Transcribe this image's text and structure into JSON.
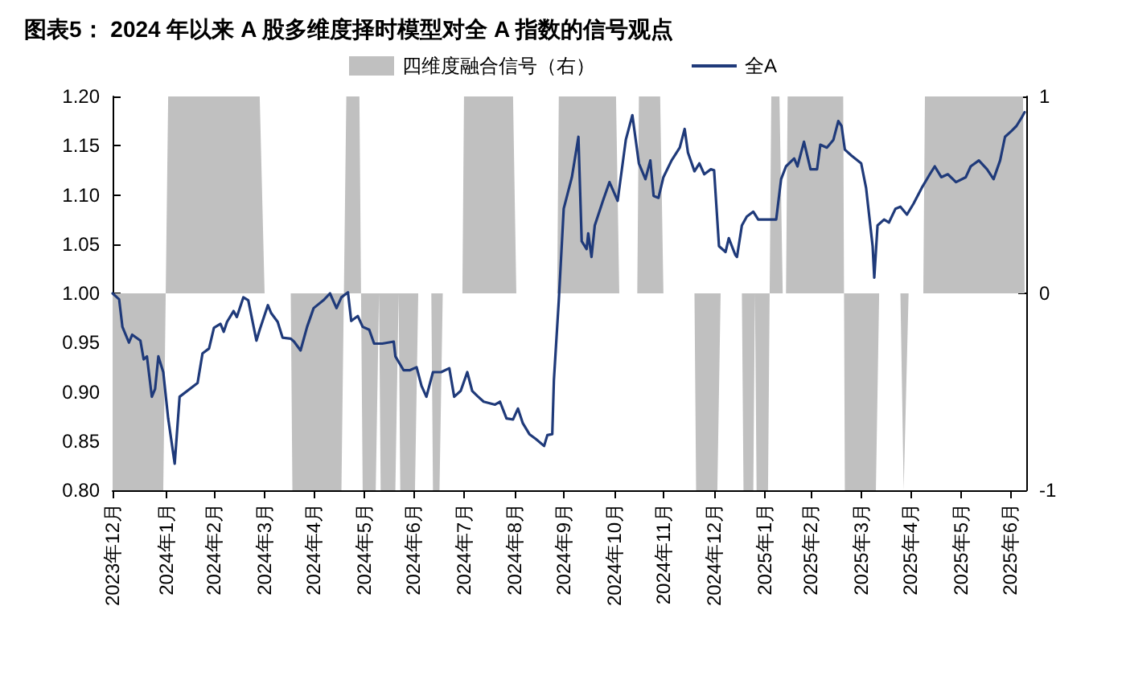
{
  "chart_data": {
    "type": "line",
    "title": "图表5： 2024 年以来 A 股多维度择时模型对全 A 指数的信号观点",
    "legend": "top",
    "grid": false,
    "marker": "none",
    "line_style": "solid",
    "xlim": [
      "2023-12-29",
      "2025-07-10"
    ],
    "xticks": [
      {
        "value": "2023-12-29",
        "label": "2023年12月"
      },
      {
        "value": "2024-01-31",
        "label": "2024年1月"
      },
      {
        "value": "2024-02-29",
        "label": "2024年2月"
      },
      {
        "value": "2024-03-31",
        "label": "2024年3月"
      },
      {
        "value": "2024-04-30",
        "label": "2024年4月"
      },
      {
        "value": "2024-05-31",
        "label": "2024年5月"
      },
      {
        "value": "2024-06-30",
        "label": "2024年6月"
      },
      {
        "value": "2024-07-31",
        "label": "2024年7月"
      },
      {
        "value": "2024-08-31",
        "label": "2024年8月"
      },
      {
        "value": "2024-09-30",
        "label": "2024年9月"
      },
      {
        "value": "2024-10-31",
        "label": "2024年10月"
      },
      {
        "value": "2024-11-30",
        "label": "2024年11月"
      },
      {
        "value": "2024-12-31",
        "label": "2024年12月"
      },
      {
        "value": "2025-01-31",
        "label": "2025年1月"
      },
      {
        "value": "2025-02-28",
        "label": "2025年2月"
      },
      {
        "value": "2025-03-31",
        "label": "2025年3月"
      },
      {
        "value": "2025-04-30",
        "label": "2025年4月"
      },
      {
        "value": "2025-05-31",
        "label": "2025年5月"
      },
      {
        "value": "2025-06-30",
        "label": "2025年6月"
      }
    ],
    "ylim": [
      0.8,
      1.2
    ],
    "yticks": [
      {
        "value": 0.8,
        "label": "0.80"
      },
      {
        "value": 0.85,
        "label": "0.85"
      },
      {
        "value": 0.9,
        "label": "0.90"
      },
      {
        "value": 0.95,
        "label": "0.95"
      },
      {
        "value": 1.0,
        "label": "1.00"
      },
      {
        "value": 1.05,
        "label": "1.05"
      },
      {
        "value": 1.1,
        "label": "1.10"
      },
      {
        "value": 1.15,
        "label": "1.15"
      },
      {
        "value": 1.2,
        "label": "1.20"
      }
    ],
    "y2lim": [
      -1,
      1
    ],
    "y2ticks": [
      -1,
      0,
      1
    ],
    "series": [
      {
        "name": "四维度融合信号（右）",
        "type": "area",
        "axis": "y2",
        "color": "#c0c0c0",
        "x": [
          "2023-12-29",
          "2024-01-29",
          "2024-02-01",
          "2024-03-28",
          "2024-03-31",
          "2024-04-16",
          "2024-04-17",
          "2024-05-17",
          "2024-05-20",
          "2024-05-28",
          "2024-05-30",
          "2024-06-07",
          "2024-06-09",
          "2024-06-10",
          "2024-06-19",
          "2024-06-21",
          "2024-06-22",
          "2024-07-01",
          "2024-07-03",
          "2024-07-11",
          "2024-07-12",
          "2024-07-16",
          "2024-07-18",
          "2024-07-30",
          "2024-07-31",
          "2024-08-30",
          "2024-09-01",
          "2024-09-26",
          "2024-09-27",
          "2024-11-01",
          "2024-11-03",
          "2024-11-14",
          "2024-11-15",
          "2024-11-28",
          "2024-11-30",
          "2024-12-19",
          "2024-12-20",
          "2025-01-02",
          "2025-01-04",
          "2025-01-17",
          "2025-01-18",
          "2025-01-24",
          "2025-01-25",
          "2025-01-26",
          "2025-02-02",
          "2025-02-04",
          "2025-02-09",
          "2025-02-11",
          "2025-02-13",
          "2025-02-14",
          "2025-03-20",
          "2025-03-21",
          "2025-04-09",
          "2025-04-11",
          "2025-04-24",
          "2025-04-26",
          "2025-04-29",
          "2025-05-08",
          "2025-05-09",
          "2025-07-08",
          "2025-07-09"
        ],
        "values": [
          -1,
          -1,
          1,
          1,
          0,
          0,
          -1,
          -1,
          1,
          1,
          -1,
          -1,
          0,
          -1,
          -1,
          0,
          -1,
          -1,
          0,
          0,
          -1,
          -1,
          0,
          0,
          1,
          1,
          0,
          0,
          1,
          1,
          0,
          0,
          1,
          1,
          0,
          0,
          -1,
          -1,
          0,
          0,
          -1,
          -1,
          0,
          -1,
          -1,
          1,
          1,
          0,
          0,
          1,
          1,
          -1,
          -1,
          0,
          0,
          -1,
          0,
          0,
          1,
          1,
          0
        ]
      },
      {
        "name": "全A",
        "color": "#1f3a7a",
        "x": [
          "2023-12-29",
          "2024-01-02",
          "2024-01-04",
          "2024-01-08",
          "2024-01-10",
          "2024-01-15",
          "2024-01-17",
          "2024-01-19",
          "2024-01-22",
          "2024-01-24",
          "2024-01-26",
          "2024-01-29",
          "2024-02-01",
          "2024-02-05",
          "2024-02-08",
          "2024-02-19",
          "2024-02-22",
          "2024-02-26",
          "2024-02-29",
          "2024-03-04",
          "2024-03-06",
          "2024-03-08",
          "2024-03-12",
          "2024-03-14",
          "2024-03-18",
          "2024-03-21",
          "2024-03-26",
          "2024-03-28",
          "2024-04-02",
          "2024-04-04",
          "2024-04-08",
          "2024-04-11",
          "2024-04-16",
          "2024-04-18",
          "2024-04-22",
          "2024-04-26",
          "2024-04-30",
          "2024-05-06",
          "2024-05-10",
          "2024-05-14",
          "2024-05-17",
          "2024-05-21",
          "2024-05-23",
          "2024-05-27",
          "2024-05-30",
          "2024-06-03",
          "2024-06-06",
          "2024-06-11",
          "2024-06-18",
          "2024-06-19",
          "2024-06-24",
          "2024-06-28",
          "2024-07-02",
          "2024-07-05",
          "2024-07-08",
          "2024-07-12",
          "2024-07-17",
          "2024-07-22",
          "2024-07-25",
          "2024-07-29",
          "2024-08-02",
          "2024-08-05",
          "2024-08-08",
          "2024-08-12",
          "2024-08-19",
          "2024-08-22",
          "2024-08-26",
          "2024-08-30",
          "2024-09-02",
          "2024-09-05",
          "2024-09-09",
          "2024-09-13",
          "2024-09-18",
          "2024-09-20",
          "2024-09-23",
          "2024-09-24",
          "2024-09-27",
          "2024-09-30",
          "2024-10-05",
          "2024-10-09",
          "2024-10-11",
          "2024-10-14",
          "2024-10-15",
          "2024-10-17",
          "2024-10-19",
          "2024-10-24",
          "2024-10-28",
          "2024-11-02",
          "2024-11-07",
          "2024-11-11",
          "2024-11-15",
          "2024-11-19",
          "2024-11-22",
          "2024-11-24",
          "2024-11-27",
          "2024-11-30",
          "2024-12-05",
          "2024-12-10",
          "2024-12-13",
          "2024-12-15",
          "2024-12-19",
          "2024-12-22",
          "2024-12-25",
          "2024-12-29",
          "2024-12-31",
          "2025-01-03",
          "2025-01-07",
          "2025-01-09",
          "2025-01-13",
          "2025-01-14",
          "2025-01-17",
          "2025-01-20",
          "2025-01-24",
          "2025-01-27",
          "2025-02-07",
          "2025-02-10",
          "2025-02-13",
          "2025-02-18",
          "2025-02-20",
          "2025-02-24",
          "2025-02-28",
          "2025-03-04",
          "2025-03-06",
          "2025-03-10",
          "2025-03-14",
          "2025-03-17",
          "2025-03-19",
          "2025-03-21",
          "2025-03-25",
          "2025-03-31",
          "2025-04-03",
          "2025-04-07",
          "2025-04-08",
          "2025-04-10",
          "2025-04-14",
          "2025-04-17",
          "2025-04-21",
          "2025-04-24",
          "2025-04-28",
          "2025-05-02",
          "2025-05-07",
          "2025-05-12",
          "2025-05-15",
          "2025-05-19",
          "2025-05-23",
          "2025-05-28",
          "2025-06-03",
          "2025-06-06",
          "2025-06-11",
          "2025-06-16",
          "2025-06-20",
          "2025-06-24",
          "2025-06-27",
          "2025-07-01",
          "2025-07-04",
          "2025-07-07",
          "2025-07-09"
        ],
        "values": [
          1.0,
          0.994,
          0.966,
          0.95,
          0.958,
          0.952,
          0.933,
          0.936,
          0.895,
          0.903,
          0.936,
          0.92,
          0.873,
          0.827,
          0.895,
          0.909,
          0.939,
          0.944,
          0.965,
          0.969,
          0.961,
          0.971,
          0.982,
          0.976,
          0.996,
          0.993,
          0.952,
          0.963,
          0.988,
          0.98,
          0.971,
          0.955,
          0.954,
          0.951,
          0.942,
          0.966,
          0.985,
          0.993,
          1.0,
          0.985,
          0.996,
          1.001,
          0.972,
          0.977,
          0.966,
          0.963,
          0.949,
          0.949,
          0.951,
          0.936,
          0.922,
          0.922,
          0.925,
          0.906,
          0.895,
          0.92,
          0.92,
          0.924,
          0.895,
          0.901,
          0.92,
          0.901,
          0.896,
          0.89,
          0.887,
          0.89,
          0.873,
          0.872,
          0.883,
          0.868,
          0.857,
          0.852,
          0.845,
          0.856,
          0.857,
          0.912,
          0.993,
          1.086,
          1.118,
          1.159,
          1.053,
          1.045,
          1.061,
          1.037,
          1.069,
          1.094,
          1.113,
          1.094,
          1.156,
          1.181,
          1.132,
          1.116,
          1.135,
          1.099,
          1.097,
          1.118,
          1.135,
          1.148,
          1.167,
          1.143,
          1.124,
          1.132,
          1.121,
          1.126,
          1.125,
          1.048,
          1.042,
          1.056,
          1.039,
          1.037,
          1.069,
          1.078,
          1.083,
          1.075,
          1.075,
          1.116,
          1.129,
          1.137,
          1.129,
          1.154,
          1.126,
          1.126,
          1.151,
          1.148,
          1.156,
          1.175,
          1.17,
          1.146,
          1.14,
          1.132,
          1.107,
          1.048,
          1.016,
          1.069,
          1.075,
          1.072,
          1.086,
          1.088,
          1.08,
          1.091,
          1.107,
          1.121,
          1.129,
          1.118,
          1.121,
          1.113,
          1.118,
          1.129,
          1.135,
          1.126,
          1.116,
          1.135,
          1.159,
          1.165,
          1.17,
          1.178,
          1.184
        ]
      }
    ]
  }
}
